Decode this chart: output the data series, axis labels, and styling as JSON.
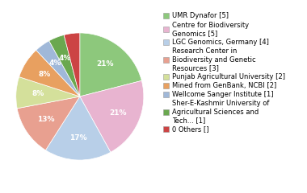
{
  "values": [
    21,
    21,
    17,
    13,
    8,
    8,
    4,
    4,
    4
  ],
  "colors": [
    "#8dc87c",
    "#e8b4d0",
    "#b8cfe8",
    "#e8a090",
    "#d4e09b",
    "#e8a060",
    "#a0b8d8",
    "#6aa84f",
    "#cc4444"
  ],
  "pct_labels": [
    "21%",
    "21%",
    "17%",
    "13%",
    "8%",
    "8%",
    "4%",
    "4%",
    ""
  ],
  "legend_labels": [
    "UMR Dynafor [5]",
    "Centre for Biodiversity\nGenomics [5]",
    "LGC Genomics, Germany [4]",
    "Research Center in\nBiodiversity and Genetic\nResources [3]",
    "Punjab Agricultural University [2]",
    "Mined from GenBank, NCBI [2]",
    "Wellcome Sanger Institute [1]",
    "Sher-E-Kashmir University of\nAgricultural Sciences and\nTech... [1]",
    "0 Others []"
  ],
  "legend_colors": [
    "#8dc87c",
    "#e8b4d0",
    "#b8cfe8",
    "#e8a090",
    "#d4e09b",
    "#e8a060",
    "#a0b8d8",
    "#6aa84f",
    "#cc4444"
  ],
  "startangle": 90,
  "pct_fontsize": 6.5,
  "legend_fontsize": 6.0
}
